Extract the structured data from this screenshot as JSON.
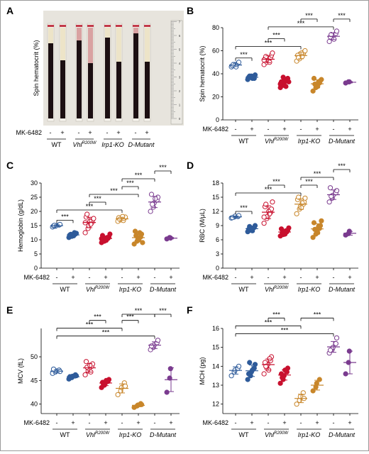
{
  "panel_labels": [
    "A",
    "B",
    "C",
    "D",
    "E",
    "F"
  ],
  "photo": {
    "ylabel": "Spin hematocrit (%)",
    "scale_ticks": [
      "0",
      "1",
      "2",
      "3",
      "4",
      "5",
      "6",
      "7"
    ],
    "drug": "MK-6482",
    "signs": [
      "-",
      "+"
    ],
    "groups": [
      {
        "name": "WT",
        "italic": false,
        "sup": ""
      },
      {
        "name": "Vhl",
        "italic": true,
        "sup": "R200W"
      },
      {
        "name": "Irp1-KO",
        "italic": true,
        "sup": ""
      },
      {
        "name": "D-Mutant",
        "italic": true,
        "sup": ""
      }
    ]
  },
  "groups": [
    {
      "name": "WT",
      "italic": false,
      "sup": ""
    },
    {
      "name": "Vhl",
      "italic": true,
      "sup": "R200W"
    },
    {
      "name": "Irp1-KO",
      "italic": true,
      "sup": ""
    },
    {
      "name": "D-Mutant",
      "italic": true,
      "sup": ""
    }
  ],
  "drug_label": "MK-6482",
  "signs": [
    "-",
    "+"
  ],
  "sig_label": "***",
  "colors": {
    "WT": "#2e5b9a",
    "Vhl": "#c8102e",
    "Irp1": "#c8862a",
    "DMut": "#7a3b8f"
  },
  "chart_data": [
    {
      "panel": "B",
      "type": "scatter",
      "ylabel": "Spin hematocrit (%)",
      "ylim": [
        0,
        80
      ],
      "yticks": [
        0,
        20,
        40,
        60,
        80
      ],
      "series": [
        {
          "group": "WT",
          "treatment": "-",
          "values": [
            46,
            47,
            48,
            49,
            50,
            47,
            48,
            46
          ]
        },
        {
          "group": "WT",
          "treatment": "+",
          "values": [
            35,
            37,
            38,
            36,
            39,
            37,
            38,
            36,
            37
          ]
        },
        {
          "group": "Vhl",
          "treatment": "-",
          "values": [
            48,
            50,
            52,
            54,
            56,
            53,
            55,
            51,
            50,
            58,
            52
          ]
        },
        {
          "group": "Vhl",
          "treatment": "+",
          "values": [
            28,
            30,
            32,
            34,
            36,
            33,
            31,
            35,
            29,
            33,
            31,
            37
          ]
        },
        {
          "group": "Irp1",
          "treatment": "-",
          "values": [
            51,
            53,
            55,
            57,
            59,
            56,
            54,
            58,
            55,
            60
          ]
        },
        {
          "group": "Irp1",
          "treatment": "+",
          "values": [
            25,
            28,
            30,
            32,
            34,
            36,
            31,
            29,
            33,
            35
          ]
        },
        {
          "group": "DMut",
          "treatment": "-",
          "values": [
            68,
            71,
            73,
            75,
            77,
            72,
            74,
            70
          ]
        },
        {
          "group": "DMut",
          "treatment": "+",
          "values": [
            32,
            33,
            33
          ]
        }
      ],
      "brackets": [
        [
          0,
          1
        ],
        [
          0,
          4
        ],
        [
          2,
          3
        ],
        [
          2,
          6
        ],
        [
          4,
          5
        ],
        [
          6,
          7
        ]
      ]
    },
    {
      "panel": "C",
      "type": "scatter",
      "ylabel": "Hemoglobin (g/dL)",
      "ylim": [
        0,
        30
      ],
      "yticks": [
        0,
        5,
        10,
        15,
        20,
        25,
        30
      ],
      "series": [
        {
          "group": "WT",
          "treatment": "-",
          "values": [
            14.5,
            14.8,
            15,
            15.2,
            15.4,
            14.9,
            15.1
          ]
        },
        {
          "group": "WT",
          "treatment": "+",
          "values": [
            10.8,
            11.2,
            11.5,
            12,
            12.3,
            11.7,
            11.9,
            11.4,
            12.5
          ]
        },
        {
          "group": "Vhl",
          "treatment": "-",
          "values": [
            12.5,
            14,
            15,
            16,
            17,
            18,
            19,
            16.5,
            15.5,
            17.5,
            16
          ]
        },
        {
          "group": "Vhl",
          "treatment": "+",
          "values": [
            9,
            9.5,
            10,
            10.5,
            11,
            11.5,
            10.2,
            9.8,
            10.8,
            12,
            10.4
          ]
        },
        {
          "group": "Irp1",
          "treatment": "-",
          "values": [
            16.5,
            17,
            17.3,
            17.6,
            18,
            17.8,
            17.2,
            18.2,
            16.8
          ]
        },
        {
          "group": "Irp1",
          "treatment": "+",
          "values": [
            8.5,
            9.5,
            10.5,
            11,
            12,
            13,
            11.5,
            10,
            12.5,
            9
          ]
        },
        {
          "group": "DMut",
          "treatment": "-",
          "values": [
            20,
            21.5,
            23,
            24,
            25,
            26,
            22.5,
            24.5
          ]
        },
        {
          "group": "DMut",
          "treatment": "+",
          "values": [
            10.3,
            10.8,
            10.6
          ]
        }
      ],
      "brackets": [
        [
          0,
          1
        ],
        [
          0,
          4
        ],
        [
          2,
          3
        ],
        [
          2,
          5
        ],
        [
          4,
          5
        ],
        [
          4,
          6
        ],
        [
          6,
          7
        ]
      ]
    },
    {
      "panel": "D",
      "type": "scatter",
      "ylabel": "RBC (M/μL)",
      "ylim": [
        0,
        18
      ],
      "yticks": [
        0,
        3,
        6,
        9,
        12,
        15,
        18
      ],
      "series": [
        {
          "group": "WT",
          "treatment": "-",
          "values": [
            10.6,
            10.8,
            11,
            10.9,
            11.1,
            10.7
          ]
        },
        {
          "group": "WT",
          "treatment": "+",
          "values": [
            7.7,
            8,
            8.3,
            8.6,
            9,
            8.2,
            8.8,
            7.9,
            8.5
          ]
        },
        {
          "group": "Vhl",
          "treatment": "-",
          "values": [
            9.5,
            10.5,
            11,
            11.8,
            12.5,
            13,
            13.5,
            12,
            11.5,
            14,
            10.8
          ]
        },
        {
          "group": "Vhl",
          "treatment": "+",
          "values": [
            6.8,
            7.1,
            7.4,
            7.7,
            8,
            8.3,
            7.5,
            7.2,
            7.9,
            8.5
          ]
        },
        {
          "group": "Irp1",
          "treatment": "-",
          "values": [
            11.5,
            12.5,
            13,
            13.5,
            14,
            14.5,
            15,
            12.8,
            13.8,
            14.8
          ]
        },
        {
          "group": "Irp1",
          "treatment": "+",
          "values": [
            6.5,
            7.2,
            7.8,
            8.4,
            9,
            9.6,
            8.2,
            7.5,
            8.8,
            10
          ]
        },
        {
          "group": "DMut",
          "treatment": "-",
          "values": [
            14,
            14.8,
            15.4,
            15.9,
            16.4,
            17,
            15.2
          ]
        },
        {
          "group": "DMut",
          "treatment": "+",
          "values": [
            7,
            7.3,
            7.8
          ]
        }
      ],
      "brackets": [
        [
          0,
          1
        ],
        [
          0,
          4
        ],
        [
          2,
          3
        ],
        [
          4,
          5
        ],
        [
          4,
          6
        ],
        [
          6,
          7
        ]
      ]
    },
    {
      "panel": "E",
      "type": "scatter",
      "ylabel": "MCV (fL)",
      "ylim": [
        38,
        56
      ],
      "yticks": [
        40,
        45,
        50
      ],
      "series": [
        {
          "group": "WT",
          "treatment": "-",
          "values": [
            46.5,
            46.8,
            47,
            47.2,
            46.9,
            47.4
          ]
        },
        {
          "group": "WT",
          "treatment": "+",
          "values": [
            45.3,
            45.6,
            45.9,
            46.2,
            46,
            45.8,
            45.7
          ]
        },
        {
          "group": "Vhl",
          "treatment": "-",
          "values": [
            46.2,
            47,
            47.5,
            48,
            48.5,
            49,
            47.8,
            48.2,
            46.8
          ]
        },
        {
          "group": "Vhl",
          "treatment": "+",
          "values": [
            43.5,
            44,
            44.4,
            44.8,
            45.2,
            44.6,
            44.2,
            45
          ]
        },
        {
          "group": "Irp1",
          "treatment": "-",
          "values": [
            42,
            42.8,
            43.5,
            44.5,
            43.8
          ]
        },
        {
          "group": "Irp1",
          "treatment": "+",
          "values": [
            39.3,
            39.6,
            39.8,
            40.1,
            39.9
          ]
        },
        {
          "group": "DMut",
          "treatment": "-",
          "values": [
            51.5,
            52,
            52.5,
            53,
            53.5,
            52.3
          ]
        },
        {
          "group": "DMut",
          "treatment": "+",
          "values": [
            42.5,
            45.5,
            47.5
          ]
        }
      ],
      "brackets": [
        [
          0,
          6
        ],
        [
          0,
          4
        ],
        [
          2,
          3
        ],
        [
          4,
          5
        ],
        [
          4,
          6
        ],
        [
          6,
          7
        ]
      ]
    },
    {
      "panel": "F",
      "type": "scatter",
      "ylabel": "MCH (pg)",
      "ylim": [
        11.5,
        16
      ],
      "yticks": [
        12,
        13,
        14,
        15,
        16
      ],
      "series": [
        {
          "group": "WT",
          "treatment": "-",
          "values": [
            13.5,
            13.7,
            13.8,
            13.9,
            14
          ]
        },
        {
          "group": "WT",
          "treatment": "+",
          "values": [
            13.3,
            13.5,
            13.7,
            13.9,
            14.1,
            13.6,
            14.2,
            13.8
          ]
        },
        {
          "group": "Vhl",
          "treatment": "-",
          "values": [
            13.6,
            13.9,
            14.1,
            14.3,
            14.5,
            14.2,
            14,
            13.8,
            14.4
          ]
        },
        {
          "group": "Vhl",
          "treatment": "+",
          "values": [
            13.1,
            13.3,
            13.5,
            13.7,
            13.9,
            13.6,
            13.4,
            13.8
          ]
        },
        {
          "group": "Irp1",
          "treatment": "-",
          "values": [
            12,
            12.2,
            12.4,
            12.6,
            12.3
          ]
        },
        {
          "group": "Irp1",
          "treatment": "+",
          "values": [
            12.7,
            12.9,
            13.1,
            13.3
          ]
        },
        {
          "group": "DMut",
          "treatment": "-",
          "values": [
            14.7,
            14.9,
            15,
            15.2,
            15.5,
            14.85
          ]
        },
        {
          "group": "DMut",
          "treatment": "+",
          "values": [
            13.6,
            14.2,
            14.8
          ]
        }
      ],
      "brackets": [
        [
          0,
          6
        ],
        [
          0,
          4
        ],
        [
          2,
          3
        ],
        [
          4,
          6
        ]
      ]
    }
  ]
}
